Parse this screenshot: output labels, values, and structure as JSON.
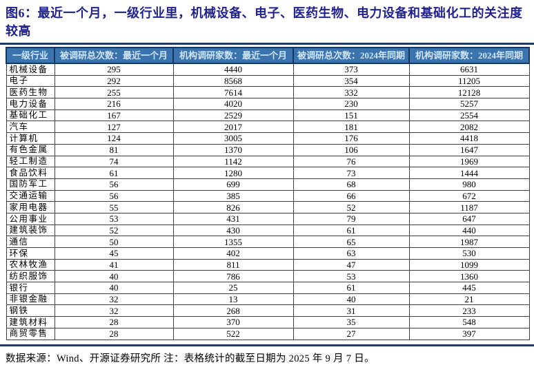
{
  "figure": {
    "title": "图6：最近一个月，一级行业里，机械设备、电子、医药生物、电力设备和基础化工的关注度较高",
    "source_note": "数据来源：Wind、开源证券研究所  注：表格统计的截至日期为 2025 年 9 月 7 日。"
  },
  "table": {
    "headers": [
      "一级行业",
      "被调研总次数：最近一个月",
      "机构调研家数：最近一个月",
      "被调研总次数：2024年同期",
      "机构调研家数：2024年同期"
    ],
    "rows": [
      {
        "industry": "机械设备",
        "values": [
          295,
          4440,
          373,
          6631
        ]
      },
      {
        "industry": "电子",
        "values": [
          292,
          8568,
          354,
          11205
        ]
      },
      {
        "industry": "医药生物",
        "values": [
          255,
          7614,
          332,
          12128
        ]
      },
      {
        "industry": "电力设备",
        "values": [
          216,
          4020,
          230,
          5257
        ]
      },
      {
        "industry": "基础化工",
        "values": [
          167,
          2529,
          151,
          2554
        ]
      },
      {
        "industry": "汽车",
        "values": [
          127,
          2017,
          181,
          2082
        ]
      },
      {
        "industry": "计算机",
        "values": [
          124,
          3005,
          176,
          4418
        ]
      },
      {
        "industry": "有色金属",
        "values": [
          81,
          1370,
          106,
          1647
        ]
      },
      {
        "industry": "轻工制造",
        "values": [
          74,
          1142,
          76,
          1969
        ]
      },
      {
        "industry": "食品饮料",
        "values": [
          61,
          1280,
          73,
          1444
        ]
      },
      {
        "industry": "国防军工",
        "values": [
          56,
          699,
          68,
          980
        ]
      },
      {
        "industry": "交通运输",
        "values": [
          56,
          385,
          66,
          672
        ]
      },
      {
        "industry": "家用电器",
        "values": [
          55,
          826,
          52,
          1187
        ]
      },
      {
        "industry": "公用事业",
        "values": [
          53,
          431,
          79,
          647
        ]
      },
      {
        "industry": "建筑装饰",
        "values": [
          52,
          430,
          61,
          440
        ]
      },
      {
        "industry": "通信",
        "values": [
          50,
          1355,
          65,
          1987
        ]
      },
      {
        "industry": "环保",
        "values": [
          45,
          402,
          63,
          530
        ]
      },
      {
        "industry": "农林牧渔",
        "values": [
          41,
          811,
          47,
          1099
        ]
      },
      {
        "industry": "纺织服饰",
        "values": [
          40,
          786,
          53,
          1360
        ]
      },
      {
        "industry": "银行",
        "values": [
          40,
          25,
          61,
          445
        ]
      },
      {
        "industry": "非银金融",
        "values": [
          32,
          13,
          40,
          21
        ]
      },
      {
        "industry": "钢铁",
        "values": [
          32,
          268,
          31,
          233
        ]
      },
      {
        "industry": "建筑材料",
        "values": [
          28,
          370,
          35,
          548
        ]
      },
      {
        "industry": "商贸零售",
        "values": [
          28,
          522,
          27,
          397
        ]
      }
    ]
  },
  "colors": {
    "title_text": "#21218f",
    "header_background": "#3a73ae",
    "header_text": "#cfe4f7",
    "rule": "#1f3864",
    "body_border": "#3f3f3f"
  }
}
